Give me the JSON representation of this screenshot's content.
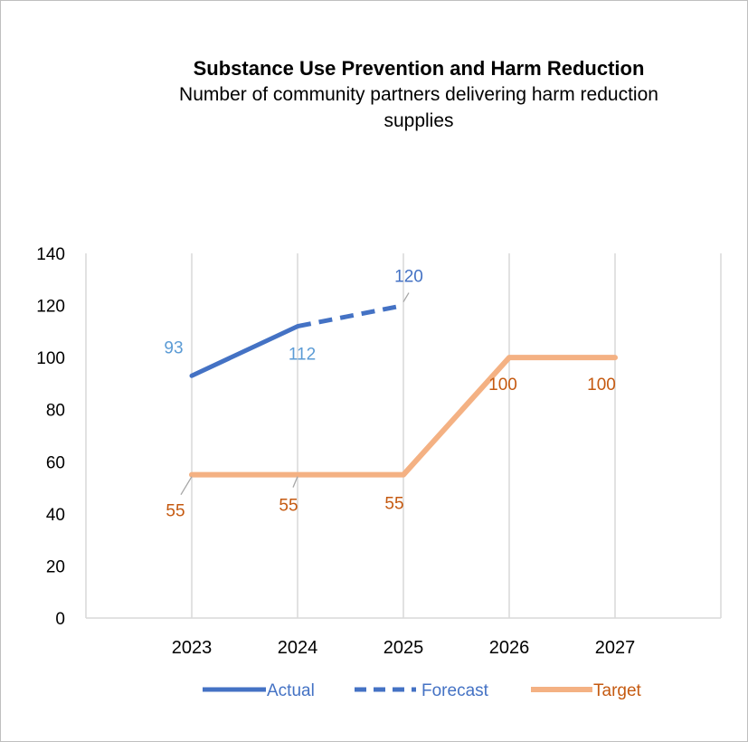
{
  "chart_data": {
    "type": "line",
    "title": "Substance Use Prevention and Harm Reduction",
    "subtitle": "Number of community partners delivering harm reduction supplies",
    "categories": [
      "2023",
      "2024",
      "2025",
      "2026",
      "2027"
    ],
    "ylim": [
      0,
      140
    ],
    "yticks": [
      0,
      20,
      40,
      60,
      80,
      100,
      120,
      140
    ],
    "grid": "vertical",
    "legend_position": "bottom",
    "series": [
      {
        "name": "Actual",
        "color": "#4472C4",
        "style": "solid",
        "points": [
          [
            "2023",
            93
          ],
          [
            "2024",
            112
          ]
        ],
        "labels": [
          "93",
          "112"
        ],
        "label_color": "#5B9BD5"
      },
      {
        "name": "Forecast",
        "color": "#4472C4",
        "style": "dashed",
        "points": [
          [
            "2024",
            112
          ],
          [
            "2025",
            120
          ]
        ],
        "labels": [
          "120"
        ],
        "label_color": "#4472C4"
      },
      {
        "name": "Target",
        "color": "#F4B183",
        "style": "solid",
        "points": [
          [
            "2023",
            55
          ],
          [
            "2024",
            55
          ],
          [
            "2025",
            55
          ],
          [
            "2026",
            100
          ],
          [
            "2027",
            100
          ]
        ],
        "labels": [
          "55",
          "55",
          "55",
          "100",
          "100"
        ],
        "label_color": "#C55A11"
      }
    ]
  }
}
